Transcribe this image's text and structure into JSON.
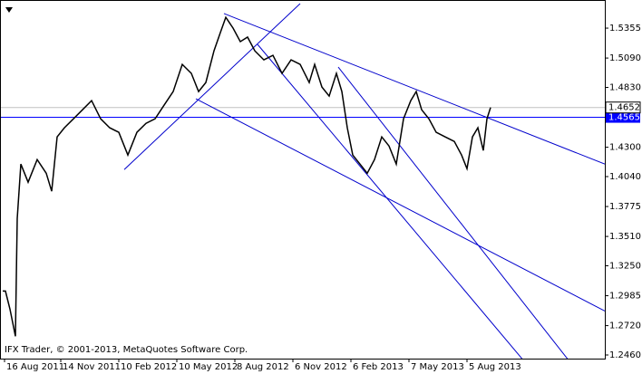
{
  "chart_data": {
    "type": "line",
    "watermark": "IFX Trader, © 2001-2013, MetaQuotes Software Corp.",
    "x": [
      2,
      5,
      10,
      16,
      18,
      22,
      30,
      40,
      50,
      56,
      62,
      70,
      80,
      90,
      100,
      110,
      120,
      130,
      140,
      150,
      160,
      170,
      180,
      190,
      200,
      210,
      218,
      226,
      235,
      242,
      248,
      256,
      264,
      272,
      280,
      290,
      300,
      310,
      320,
      330,
      340,
      346,
      354,
      362,
      370,
      376,
      382,
      388,
      396,
      404,
      412,
      420,
      428,
      436,
      444,
      452,
      458,
      464,
      472,
      480,
      490,
      500,
      508,
      514,
      520,
      526,
      532,
      536,
      540
    ],
    "values": [
      1.3026,
      1.3026,
      1.2866,
      1.2625,
      1.3669,
      1.4151,
      1.399,
      1.4191,
      1.407,
      1.391,
      1.4391,
      1.4472,
      1.4552,
      1.4632,
      1.4713,
      1.4552,
      1.4472,
      1.4432,
      1.4231,
      1.4432,
      1.4512,
      1.4552,
      1.4673,
      1.4793,
      1.5034,
      1.4954,
      1.4793,
      1.4873,
      1.5154,
      1.5315,
      1.5451,
      1.5355,
      1.5235,
      1.5275,
      1.5154,
      1.5074,
      1.5114,
      1.4954,
      1.5074,
      1.5034,
      1.4873,
      1.5034,
      1.4833,
      1.4753,
      1.4954,
      1.4793,
      1.4472,
      1.4231,
      1.4151,
      1.407,
      1.4191,
      1.4391,
      1.4311,
      1.4151,
      1.4552,
      1.4713,
      1.4793,
      1.4632,
      1.4552,
      1.4432,
      1.4391,
      1.4351,
      1.4231,
      1.411,
      1.4391,
      1.4472,
      1.4271,
      1.4552,
      1.4652
    ],
    "color": "#000000",
    "trendlines": [
      {
        "x": [
          246,
          666
        ],
        "values": [
          1.5484,
          1.4151
        ]
      },
      {
        "x": [
          215,
          666
        ],
        "values": [
          1.4729,
          1.285
        ]
      },
      {
        "x": [
          136,
          330
        ],
        "values": [
          1.4102,
          1.5572
        ]
      },
      {
        "x": [
          283,
          575
        ],
        "values": [
          1.5211,
          1.2424
        ]
      },
      {
        "x": [
          372,
          625
        ],
        "values": [
          1.501,
          1.2424
        ]
      }
    ],
    "trendline_color": "#0000cc",
    "level": 1.4565,
    "level_color": "#0000ff",
    "last_price": 1.4652,
    "xlim": [
      0,
      666
    ],
    "xticks": [
      {
        "value": 4,
        "label": "16 Aug 2011"
      },
      {
        "value": 66,
        "label": "14 Nov 2011"
      },
      {
        "value": 130,
        "label": "10 Feb 2012"
      },
      {
        "value": 194,
        "label": "10 May 2012"
      },
      {
        "value": 258,
        "label": "8 Aug 2012"
      },
      {
        "value": 322,
        "label": "6 Nov 2012"
      },
      {
        "value": 386,
        "label": "6 Feb 2013"
      },
      {
        "value": 450,
        "label": "7 May 2013"
      },
      {
        "value": 514,
        "label": "5 Aug 2013"
      }
    ],
    "ylim": [
      1.2428,
      1.5596
    ],
    "yticks": [
      1.5355,
      {
        "value": 1.509,
        "label": "1.5090"
      },
      {
        "value": 1.483,
        "label": "1.4830"
      },
      {
        "value": 1.43,
        "label": "1.4300"
      },
      {
        "value": 1.404,
        "label": "1.4040"
      },
      1.3775,
      {
        "value": 1.351,
        "label": "1.3510"
      },
      {
        "value": 1.325,
        "label": "1.3250"
      },
      1.2985,
      {
        "value": 1.272,
        "label": "1.2720"
      },
      {
        "value": 1.246,
        "label": "1.2460"
      }
    ]
  }
}
